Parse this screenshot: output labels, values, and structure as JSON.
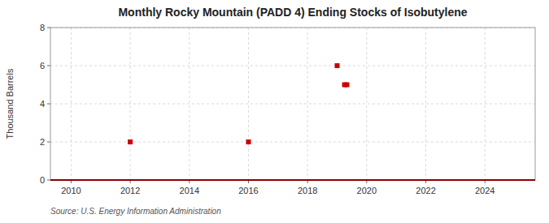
{
  "chart_data": {
    "type": "scatter",
    "title": "Monthly Rocky Mountain (PADD 4) Ending Stocks of Isobutylene",
    "ylabel": "Thousand Barrels",
    "annotations": [
      "Source: U.S. Energy Information Administration"
    ],
    "xlim": [
      2009.3,
      2025.7
    ],
    "ylim": [
      0,
      8
    ],
    "xticks": [
      2010,
      2012,
      2014,
      2016,
      2018,
      2020,
      2022,
      2024
    ],
    "yticks": [
      0,
      2,
      4,
      6,
      8
    ],
    "grid": true,
    "series": [
      {
        "type": "line",
        "color": "#8b0000",
        "line_style": "solid",
        "x": [
          2009.3,
          2025.7
        ],
        "values": [
          0,
          0
        ]
      },
      {
        "type": "scatter",
        "color": "#cc0000",
        "marker": "square",
        "x": [
          2012.0,
          2016.0,
          2019.0,
          2019.25,
          2019.33
        ],
        "values": [
          2.0,
          2.0,
          6.0,
          5.0,
          5.0
        ]
      }
    ]
  }
}
